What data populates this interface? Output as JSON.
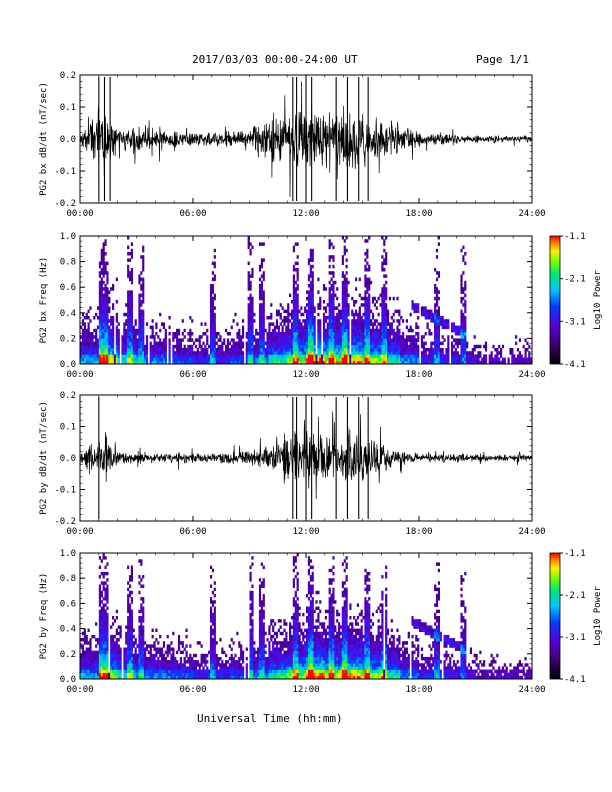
{
  "header": {
    "title": "2017/03/03  00:00-24:00 UT",
    "page": "Page 1/1"
  },
  "chart_data": [
    {
      "type": "line",
      "name": "waveform-bx",
      "ylabel": "PG2 bx dB/dt (nT/sec)",
      "xlabel": "",
      "xlim": [
        0,
        24
      ],
      "ylim": [
        -0.2,
        0.2
      ],
      "xticks": [
        "00:00",
        "06:00",
        "12:00",
        "18:00",
        "24:00"
      ],
      "yticks": [
        "-0.2",
        "-0.1",
        "0.0",
        "0.1",
        "0.2"
      ],
      "grid": false,
      "envelope": {
        "x_hours": [
          0,
          1,
          2,
          3,
          4,
          5,
          6,
          7,
          8,
          9,
          10,
          11,
          12,
          13,
          14,
          15,
          16,
          17,
          18,
          19,
          20,
          21,
          22,
          23,
          24
        ],
        "amplitude": [
          0.06,
          0.2,
          0.09,
          0.07,
          0.06,
          0.05,
          0.04,
          0.04,
          0.05,
          0.06,
          0.12,
          0.16,
          0.2,
          0.17,
          0.19,
          0.16,
          0.13,
          0.07,
          0.05,
          0.04,
          0.03,
          0.02,
          0.02,
          0.02,
          0.02
        ]
      }
    },
    {
      "type": "heatmap",
      "name": "spectrogram-bx",
      "ylabel": "PG2 bx Freq (Hz)",
      "xlabel": "",
      "xlim": [
        0,
        24
      ],
      "ylim": [
        0,
        1.0
      ],
      "xticks": [
        "00:00",
        "06:00",
        "12:00",
        "18:00",
        "24:00"
      ],
      "yticks": [
        "0.0",
        "0.2",
        "0.4",
        "0.6",
        "0.8",
        "1.0"
      ],
      "colorbar": {
        "label": "Log10 Power",
        "ticks": [
          "-1.1",
          "-2.1",
          "-3.1",
          "-4.1"
        ],
        "range": [
          -4.1,
          -1.1
        ]
      },
      "activity_by_hour": [
        0.45,
        0.7,
        0.5,
        0.4,
        0.4,
        0.35,
        0.3,
        0.3,
        0.35,
        0.4,
        0.55,
        0.65,
        0.8,
        0.7,
        0.75,
        0.65,
        0.55,
        0.4,
        0.3,
        0.3,
        0.25,
        0.2,
        0.2,
        0.2
      ]
    },
    {
      "type": "line",
      "name": "waveform-by",
      "ylabel": "PG2 by dB/dt (nT/sec)",
      "xlabel": "",
      "xlim": [
        0,
        24
      ],
      "ylim": [
        -0.2,
        0.2
      ],
      "xticks": [
        "00:00",
        "06:00",
        "12:00",
        "18:00",
        "24:00"
      ],
      "yticks": [
        "-0.2",
        "-0.1",
        "0.0",
        "0.1",
        "0.2"
      ],
      "grid": false,
      "envelope": {
        "x_hours": [
          0,
          1,
          2,
          3,
          4,
          5,
          6,
          7,
          8,
          9,
          10,
          11,
          12,
          13,
          14,
          15,
          16,
          17,
          18,
          19,
          20,
          21,
          22,
          23,
          24
        ],
        "amplitude": [
          0.04,
          0.12,
          0.04,
          0.03,
          0.03,
          0.03,
          0.03,
          0.03,
          0.03,
          0.05,
          0.08,
          0.12,
          0.2,
          0.13,
          0.15,
          0.12,
          0.1,
          0.05,
          0.03,
          0.02,
          0.02,
          0.02,
          0.02,
          0.02,
          0.02
        ]
      }
    },
    {
      "type": "heatmap",
      "name": "spectrogram-by",
      "ylabel": "PG2 by Freq (Hz)",
      "xlabel": "Universal Time (hh:mm)",
      "xlim": [
        0,
        24
      ],
      "ylim": [
        0,
        1.0
      ],
      "xticks": [
        "00:00",
        "06:00",
        "12:00",
        "18:00",
        "24:00"
      ],
      "yticks": [
        "0.0",
        "0.2",
        "0.4",
        "0.6",
        "0.8",
        "1.0"
      ],
      "colorbar": {
        "label": "Log10 Power",
        "ticks": [
          "-1.1",
          "-2.1",
          "-3.1",
          "-4.1"
        ],
        "range": [
          -4.1,
          -1.1
        ]
      },
      "activity_by_hour": [
        0.45,
        0.65,
        0.5,
        0.4,
        0.4,
        0.35,
        0.3,
        0.3,
        0.35,
        0.4,
        0.55,
        0.65,
        0.8,
        0.7,
        0.75,
        0.65,
        0.55,
        0.4,
        0.3,
        0.3,
        0.25,
        0.2,
        0.2,
        0.2
      ]
    }
  ]
}
